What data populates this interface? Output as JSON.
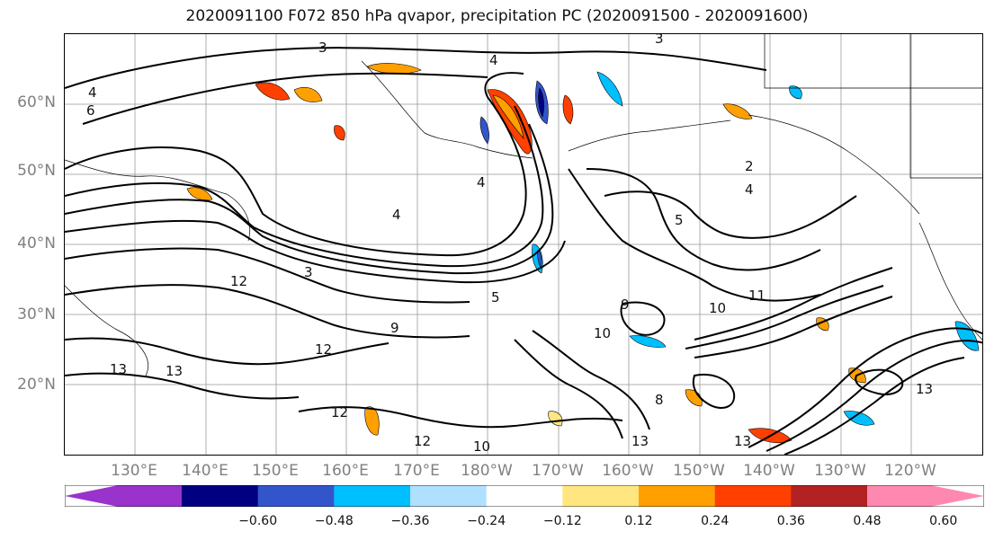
{
  "title": "2020091100 F072 850 hPa qvapor, precipitation PC (2020091500 - 2020091600)",
  "lat_labels": [
    "60°N",
    "50°N",
    "40°N",
    "30°N",
    "20°N"
  ],
  "lon_labels": [
    "130°E",
    "140°E",
    "150°E",
    "160°E",
    "170°E",
    "180°W",
    "170°W",
    "160°W",
    "150°W",
    "140°W",
    "130°W",
    "120°W"
  ],
  "contour_labels": [
    "3",
    "4",
    "6",
    "4",
    "3",
    "2",
    "4",
    "5",
    "4",
    "4",
    "3",
    "5",
    "12",
    "9",
    "12",
    "10",
    "11",
    "13",
    "13",
    "12",
    "12",
    "10",
    "8",
    "10",
    "13",
    "13",
    "13",
    "9"
  ],
  "colorbar": {
    "ticks": [
      "−0.60",
      "−0.48",
      "−0.36",
      "−0.24",
      "−0.12",
      "0.12",
      "0.24",
      "0.36",
      "0.48",
      "0.60"
    ],
    "colors": [
      "#9933cc",
      "#000080",
      "#3355cc",
      "#00bfff",
      "#b0e0ff",
      "#ffffff",
      "#ffe680",
      "#ffa000",
      "#ff4000",
      "#b22222",
      "#ff88b0"
    ]
  }
}
